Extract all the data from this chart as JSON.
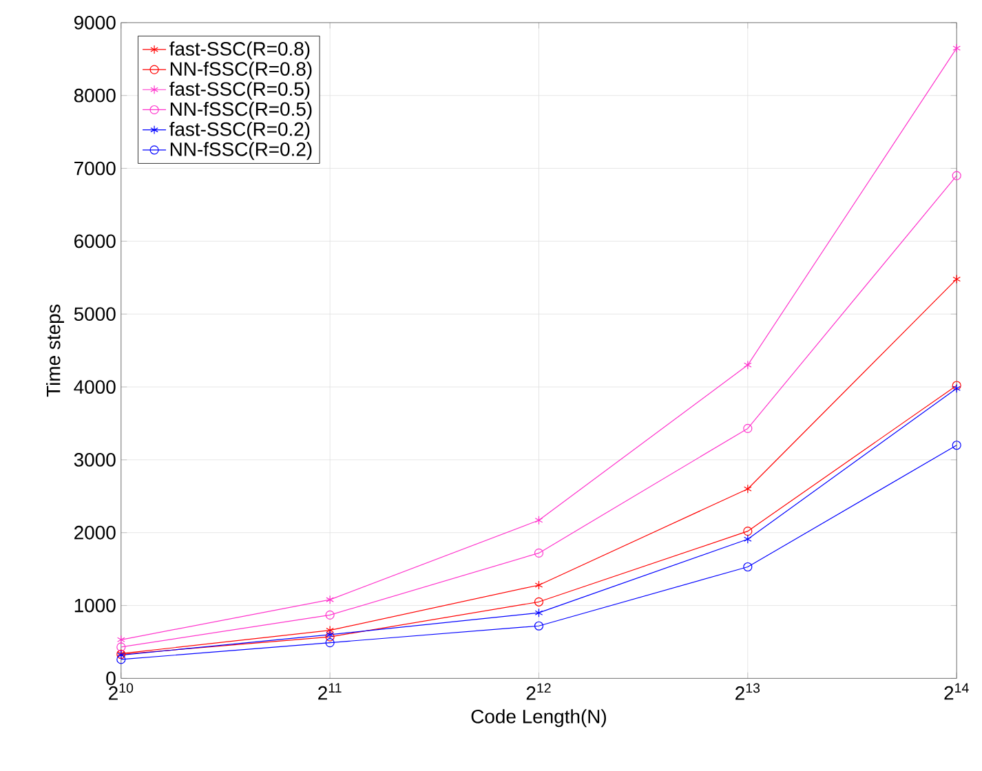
{
  "chart_data": {
    "type": "line",
    "xlabel": "Code Length(N)",
    "ylabel": "Time steps",
    "x": [
      1024,
      2048,
      4096,
      8192,
      16384
    ],
    "log": "x",
    "xlim": [
      1024,
      16384
    ],
    "xticks": [
      {
        "value": 1024,
        "label": "2$^{10}$"
      },
      {
        "value": 2048,
        "label": "2$^{11}$"
      },
      {
        "value": 4096,
        "label": "2$^{12}$"
      },
      {
        "value": 8192,
        "label": "2$^{13}$"
      },
      {
        "value": 16384,
        "label": "2$^{14}$"
      }
    ],
    "ylim": [
      0,
      9000
    ],
    "yticks": [
      0,
      1000,
      2000,
      3000,
      4000,
      5000,
      6000,
      7000,
      8000,
      9000
    ],
    "grid": true,
    "legend": "top left",
    "line_style": "solid",
    "series": [
      {
        "name": "fast-SSC(R=0.8)",
        "color": "#ff0000",
        "marker": "cross",
        "values": [
          340,
          660,
          1280,
          2600,
          5480
        ]
      },
      {
        "name": "NN-fSSC(R=0.8)",
        "color": "#ff0000",
        "marker": "circle",
        "values": [
          330,
          570,
          1050,
          2020,
          4020
        ]
      },
      {
        "name": "fast-SSC(R=0.5)",
        "color": "#ff33cc",
        "marker": "cross",
        "values": [
          530,
          1080,
          2170,
          4300,
          8650
        ]
      },
      {
        "name": "NN-fSSC(R=0.5)",
        "color": "#ff33cc",
        "marker": "circle",
        "values": [
          430,
          870,
          1720,
          3430,
          6900
        ]
      },
      {
        "name": "fast-SSC(R=0.2)",
        "color": "#0000ff",
        "marker": "cross",
        "values": [
          320,
          600,
          900,
          1910,
          3980
        ]
      },
      {
        "name": "NN-fSSC(R=0.2)",
        "color": "#0000ff",
        "marker": "circle",
        "values": [
          260,
          490,
          720,
          1530,
          3200
        ]
      }
    ]
  }
}
